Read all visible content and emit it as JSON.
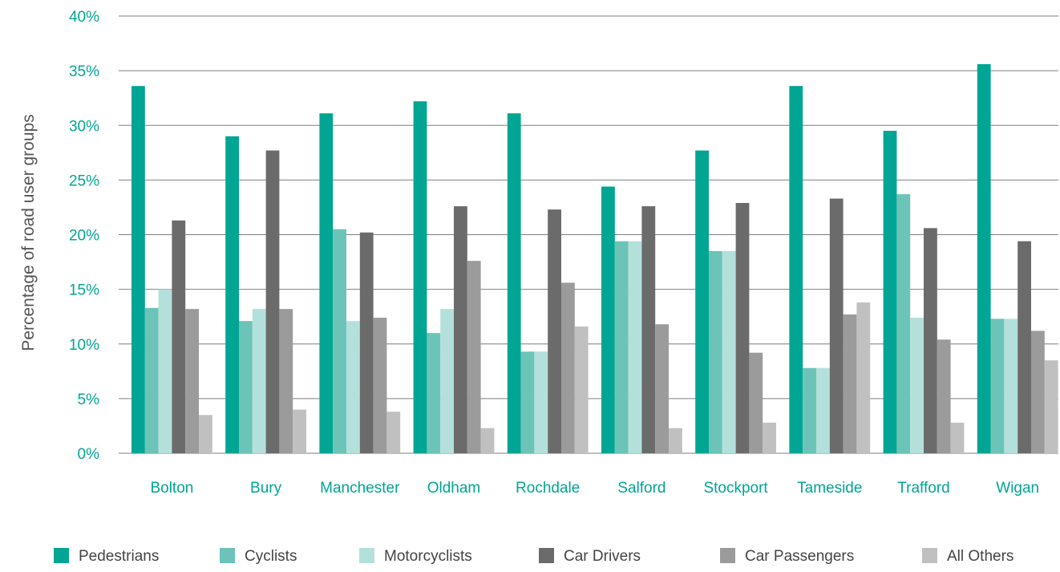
{
  "chart_data": {
    "type": "bar",
    "ylabel": "Percentage of road user groups",
    "xlabel": "",
    "ylim": [
      0,
      40
    ],
    "yticks": [
      "0%",
      "5%",
      "10%",
      "15%",
      "20%",
      "25%",
      "30%",
      "35%",
      "40%"
    ],
    "ytick_values": [
      0,
      5,
      10,
      15,
      20,
      25,
      30,
      35,
      40
    ],
    "grid": true,
    "legend_position": "bottom",
    "categories": [
      "Bolton",
      "Bury",
      "Manchester",
      "Oldham",
      "Rochdale",
      "Salford",
      "Stockport",
      "Tameside",
      "Trafford",
      "Wigan"
    ],
    "series": [
      {
        "name": "Pedestrians",
        "color": "#00a594",
        "values": [
          33.6,
          29.0,
          31.1,
          32.2,
          31.1,
          24.4,
          27.7,
          33.6,
          29.5,
          35.6
        ]
      },
      {
        "name": "Cyclists",
        "color": "#6cc4b8",
        "values": [
          13.3,
          12.1,
          20.5,
          11.0,
          9.3,
          19.4,
          18.5,
          7.8,
          23.7,
          12.3
        ]
      },
      {
        "name": "Motorcyclists",
        "color": "#b4e0dc",
        "values": [
          15.0,
          13.2,
          12.1,
          13.2,
          9.3,
          19.4,
          18.5,
          7.8,
          12.4,
          12.3
        ]
      },
      {
        "name": "Car Drivers",
        "color": "#6b6b6b",
        "values": [
          21.3,
          27.7,
          20.2,
          22.6,
          22.3,
          22.6,
          22.9,
          23.3,
          20.6,
          19.4
        ]
      },
      {
        "name": "Car Passengers",
        "color": "#9b9b9b",
        "values": [
          13.2,
          13.2,
          12.4,
          17.6,
          15.6,
          11.8,
          9.2,
          12.7,
          10.4,
          11.2
        ]
      },
      {
        "name": "All Others",
        "color": "#c0c0c0",
        "values": [
          3.5,
          4.0,
          3.8,
          2.3,
          11.6,
          2.3,
          2.8,
          13.8,
          2.8,
          8.5
        ]
      }
    ]
  }
}
